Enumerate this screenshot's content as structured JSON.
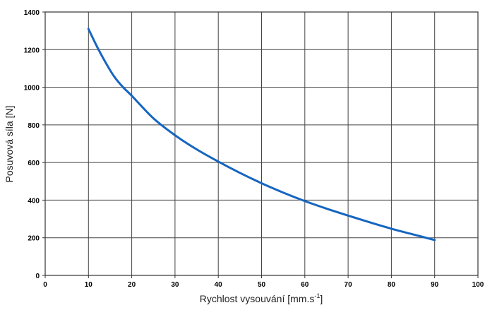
{
  "chart_data": {
    "type": "line",
    "xlabel": "Rychlost vysouvání [mm.s",
    "xlabel_sup": "-1",
    "xlabel_end": "]",
    "ylabel": "Posuvová síla [N]",
    "xlim": [
      0,
      100
    ],
    "ylim": [
      0,
      1400
    ],
    "xticks": [
      "0",
      "10",
      "20",
      "30",
      "40",
      "50",
      "60",
      "70",
      "80",
      "90",
      "100"
    ],
    "yticks": [
      "0",
      "200",
      "400",
      "600",
      "800",
      "1000",
      "1200",
      "1400"
    ],
    "grid": true,
    "line_color": "#1565c0",
    "series": [
      {
        "x": [
          10,
          12,
          14,
          16,
          18,
          20,
          25,
          30,
          35,
          40,
          45,
          50,
          55,
          60,
          65,
          70,
          75,
          80,
          85,
          90
        ],
        "values": [
          1310,
          1215,
          1130,
          1055,
          1000,
          955,
          835,
          745,
          670,
          605,
          545,
          490,
          440,
          395,
          355,
          318,
          282,
          248,
          218,
          188
        ]
      }
    ]
  }
}
